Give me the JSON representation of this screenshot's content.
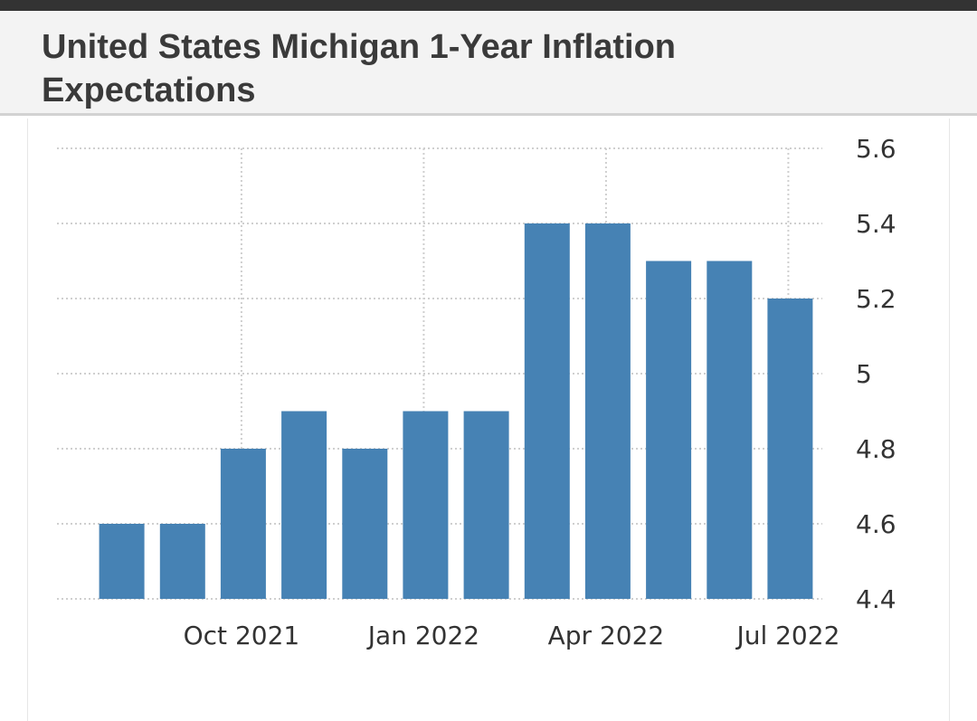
{
  "header": {
    "title": "United States Michigan 1-Year Inflation Expectations"
  },
  "chart_data": {
    "type": "bar",
    "title": "United States Michigan 1-Year Inflation Expectations",
    "xlabel": "",
    "ylabel": "",
    "ylim": [
      4.4,
      5.6
    ],
    "yticks": [
      "5.6",
      "5.4",
      "5.2",
      "5",
      "4.8",
      "4.6",
      "4.4"
    ],
    "xticks": [
      "Oct 2021",
      "Jan 2022",
      "Apr 2022",
      "Jul 2022"
    ],
    "categories": [
      "Aug 2021",
      "Sep 2021",
      "Oct 2021",
      "Nov 2021",
      "Dec 2021",
      "Jan 2022",
      "Feb 2022",
      "Mar 2022",
      "Apr 2022",
      "May 2022",
      "Jun 2022",
      "Jul 2022"
    ],
    "values": [
      4.6,
      4.6,
      4.8,
      4.9,
      4.8,
      4.9,
      4.9,
      5.4,
      5.4,
      5.3,
      5.3,
      5.2
    ],
    "bar_color": "#4682b4",
    "grid": true,
    "y_axis_position": "right"
  }
}
